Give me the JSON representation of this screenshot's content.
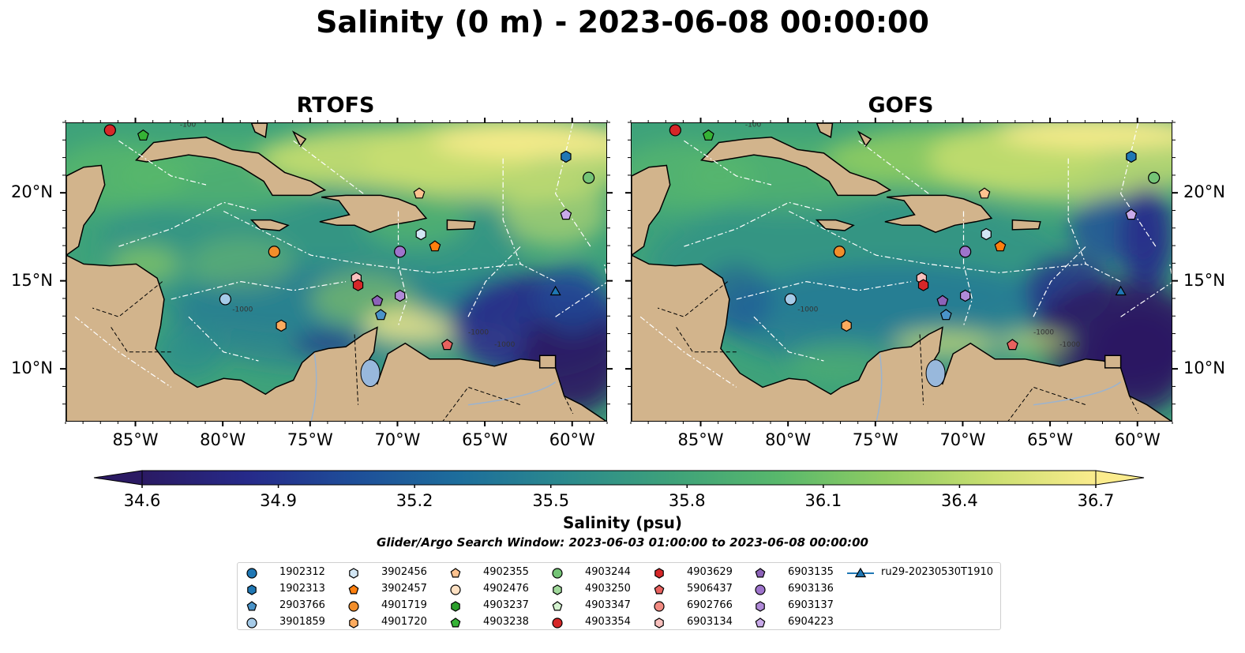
{
  "title": "Salinity (0 m) - 2023-06-08 00:00:00",
  "panels": [
    {
      "title": "RTOFS"
    },
    {
      "title": "GOFS"
    }
  ],
  "axes": {
    "x_ticks": [
      "85°W",
      "80°W",
      "75°W",
      "70°W",
      "65°W",
      "60°W"
    ],
    "y_ticks": [
      "20°N",
      "15°N",
      "10°N"
    ],
    "lon_range": [
      -89,
      -58
    ],
    "lat_range": [
      7,
      24
    ]
  },
  "colorbar": {
    "label": "Salinity (psu)",
    "ticks": [
      "34.6",
      "34.9",
      "35.2",
      "35.5",
      "35.8",
      "36.1",
      "36.4",
      "36.7"
    ],
    "range": [
      34.6,
      36.7
    ],
    "colormap": [
      "#2b1a63",
      "#262a8a",
      "#1e4e99",
      "#1d6e9c",
      "#2b8a8d",
      "#3ea27a",
      "#58b86c",
      "#8fcc62",
      "#c9df70",
      "#fbec8d"
    ]
  },
  "contour_labels": [
    "-100",
    "-1000",
    "-1000",
    "-1000"
  ],
  "search_window": "Glider/Argo Search Window: 2023-06-03 01:00:00 to 2023-06-08 00:00:00",
  "legend": [
    {
      "name": "1902312",
      "marker": "circle",
      "color": "#1f77b4"
    },
    {
      "name": "1902313",
      "marker": "hexagon",
      "color": "#1f77b4"
    },
    {
      "name": "2903766",
      "marker": "pentagon",
      "color": "#4a93c8"
    },
    {
      "name": "3901859",
      "marker": "circle",
      "color": "#a6cbe8"
    },
    {
      "name": "3902456",
      "marker": "hexagon",
      "color": "#d2e6f4"
    },
    {
      "name": "3902457",
      "marker": "pentagon",
      "color": "#ff7f0e"
    },
    {
      "name": "4901719",
      "marker": "circle",
      "color": "#f28e2b"
    },
    {
      "name": "4901720",
      "marker": "hexagon",
      "color": "#fdab5e"
    },
    {
      "name": "4902355",
      "marker": "pentagon",
      "color": "#fdc28f"
    },
    {
      "name": "4902476",
      "marker": "circle",
      "color": "#fde0c2"
    },
    {
      "name": "4903237",
      "marker": "hexagon",
      "color": "#2ca02c"
    },
    {
      "name": "4903238",
      "marker": "pentagon",
      "color": "#35b235"
    },
    {
      "name": "4903244",
      "marker": "circle",
      "color": "#74c476"
    },
    {
      "name": "4903250",
      "marker": "hexagon",
      "color": "#a1d99b"
    },
    {
      "name": "4903347",
      "marker": "pentagon",
      "color": "#d4f2cf"
    },
    {
      "name": "4903354",
      "marker": "circle",
      "color": "#d62728"
    },
    {
      "name": "4903629",
      "marker": "hexagon",
      "color": "#d62728"
    },
    {
      "name": "5906437",
      "marker": "pentagon",
      "color": "#e8625f"
    },
    {
      "name": "6902766",
      "marker": "circle",
      "color": "#f28b82"
    },
    {
      "name": "6903134",
      "marker": "hexagon",
      "color": "#f9c0bd"
    },
    {
      "name": "6903135",
      "marker": "pentagon",
      "color": "#8c62b8"
    },
    {
      "name": "6903136",
      "marker": "circle",
      "color": "#9e74cc"
    },
    {
      "name": "6903137",
      "marker": "hexagon",
      "color": "#b08ad8"
    },
    {
      "name": "6904223",
      "marker": "pentagon",
      "color": "#c9aaea"
    },
    {
      "name": "ru29-20230530T1910",
      "marker": "triangle-line",
      "color": "#1f77b4"
    }
  ],
  "floats": [
    {
      "id": "4903354",
      "lon": -86.5,
      "lat": 23.6
    },
    {
      "id": "4903238",
      "lon": -84.6,
      "lat": 23.3
    },
    {
      "id": "1902313",
      "lon": -60.4,
      "lat": 22.1
    },
    {
      "id": "4903244",
      "lon": -59.1,
      "lat": 20.9
    },
    {
      "id": "4902355",
      "lon": -68.8,
      "lat": 20.0
    },
    {
      "id": "6904223",
      "lon": -60.4,
      "lat": 18.8
    },
    {
      "id": "3902456",
      "lon": -68.7,
      "lat": 17.7
    },
    {
      "id": "3902457",
      "lon": -67.9,
      "lat": 17.0
    },
    {
      "id": "4901719",
      "lon": -77.1,
      "lat": 16.7
    },
    {
      "id": "6903136",
      "lon": -69.9,
      "lat": 16.7
    },
    {
      "id": "6903134",
      "lon": -72.4,
      "lat": 15.2
    },
    {
      "id": "4903629",
      "lon": -72.3,
      "lat": 14.8
    },
    {
      "id": "3901859",
      "lon": -79.9,
      "lat": 14.0
    },
    {
      "id": "6903135",
      "lon": -71.2,
      "lat": 13.9
    },
    {
      "id": "6903137",
      "lon": -69.9,
      "lat": 14.2
    },
    {
      "id": "2903766",
      "lon": -71.0,
      "lat": 13.1
    },
    {
      "id": "4901720",
      "lon": -76.7,
      "lat": 12.5
    },
    {
      "id": "5906437",
      "lon": -67.2,
      "lat": 11.4
    },
    {
      "id": "ru29-20230530T1910",
      "lon": -61.0,
      "lat": 14.4
    }
  ]
}
